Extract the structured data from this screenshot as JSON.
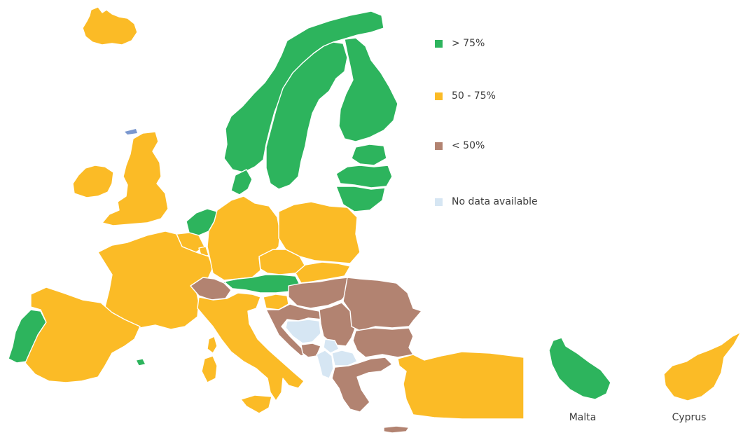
{
  "colors": {
    "high": "#2db45d",
    "mid": "#fbbb26",
    "low": "#b28371",
    "nodata": "#d6e6f3",
    "accent_blue": "#7b98cf"
  },
  "legend": {
    "items": [
      {
        "label": "> 75%",
        "category": "high"
      },
      {
        "label": "50 - 75%",
        "category": "mid"
      },
      {
        "label": "< 50%",
        "category": "low"
      },
      {
        "label": "No data available",
        "category": "nodata"
      }
    ]
  },
  "insets": {
    "malta_label": "Malta",
    "cyprus_label": "Cyprus"
  },
  "countries": [
    {
      "name": "iceland",
      "category": "mid"
    },
    {
      "name": "ireland",
      "category": "mid"
    },
    {
      "name": "united-kingdom",
      "category": "mid"
    },
    {
      "name": "norway",
      "category": "high"
    },
    {
      "name": "sweden",
      "category": "high"
    },
    {
      "name": "finland",
      "category": "high"
    },
    {
      "name": "estonia",
      "category": "high"
    },
    {
      "name": "latvia",
      "category": "high"
    },
    {
      "name": "lithuania",
      "category": "high"
    },
    {
      "name": "denmark",
      "category": "high"
    },
    {
      "name": "netherlands",
      "category": "high"
    },
    {
      "name": "belgium",
      "category": "mid"
    },
    {
      "name": "luxembourg",
      "category": "mid"
    },
    {
      "name": "france",
      "category": "mid"
    },
    {
      "name": "germany",
      "category": "mid"
    },
    {
      "name": "poland",
      "category": "mid"
    },
    {
      "name": "czechia",
      "category": "mid"
    },
    {
      "name": "slovakia",
      "category": "mid"
    },
    {
      "name": "austria",
      "category": "high"
    },
    {
      "name": "switzerland",
      "category": "low"
    },
    {
      "name": "liechtenstein",
      "category": "high"
    },
    {
      "name": "italy",
      "category": "mid"
    },
    {
      "name": "slovenia",
      "category": "mid"
    },
    {
      "name": "hungary",
      "category": "low"
    },
    {
      "name": "croatia",
      "category": "low"
    },
    {
      "name": "bosnia-and-herzegovina",
      "category": "nodata"
    },
    {
      "name": "serbia",
      "category": "low"
    },
    {
      "name": "montenegro",
      "category": "low"
    },
    {
      "name": "kosovo",
      "category": "nodata"
    },
    {
      "name": "north-macedonia",
      "category": "nodata"
    },
    {
      "name": "albania",
      "category": "nodata"
    },
    {
      "name": "romania",
      "category": "low"
    },
    {
      "name": "bulgaria",
      "category": "low"
    },
    {
      "name": "greece",
      "category": "low"
    },
    {
      "name": "turkey",
      "category": "mid"
    },
    {
      "name": "portugal",
      "category": "high"
    },
    {
      "name": "spain",
      "category": "mid"
    },
    {
      "name": "corsica",
      "category": "mid"
    },
    {
      "name": "sardinia",
      "category": "mid"
    },
    {
      "name": "sicily",
      "category": "mid"
    },
    {
      "name": "mallorca",
      "category": "high"
    },
    {
      "name": "crete",
      "category": "low"
    },
    {
      "name": "malta",
      "category": "high"
    },
    {
      "name": "cyprus",
      "category": "mid"
    }
  ]
}
